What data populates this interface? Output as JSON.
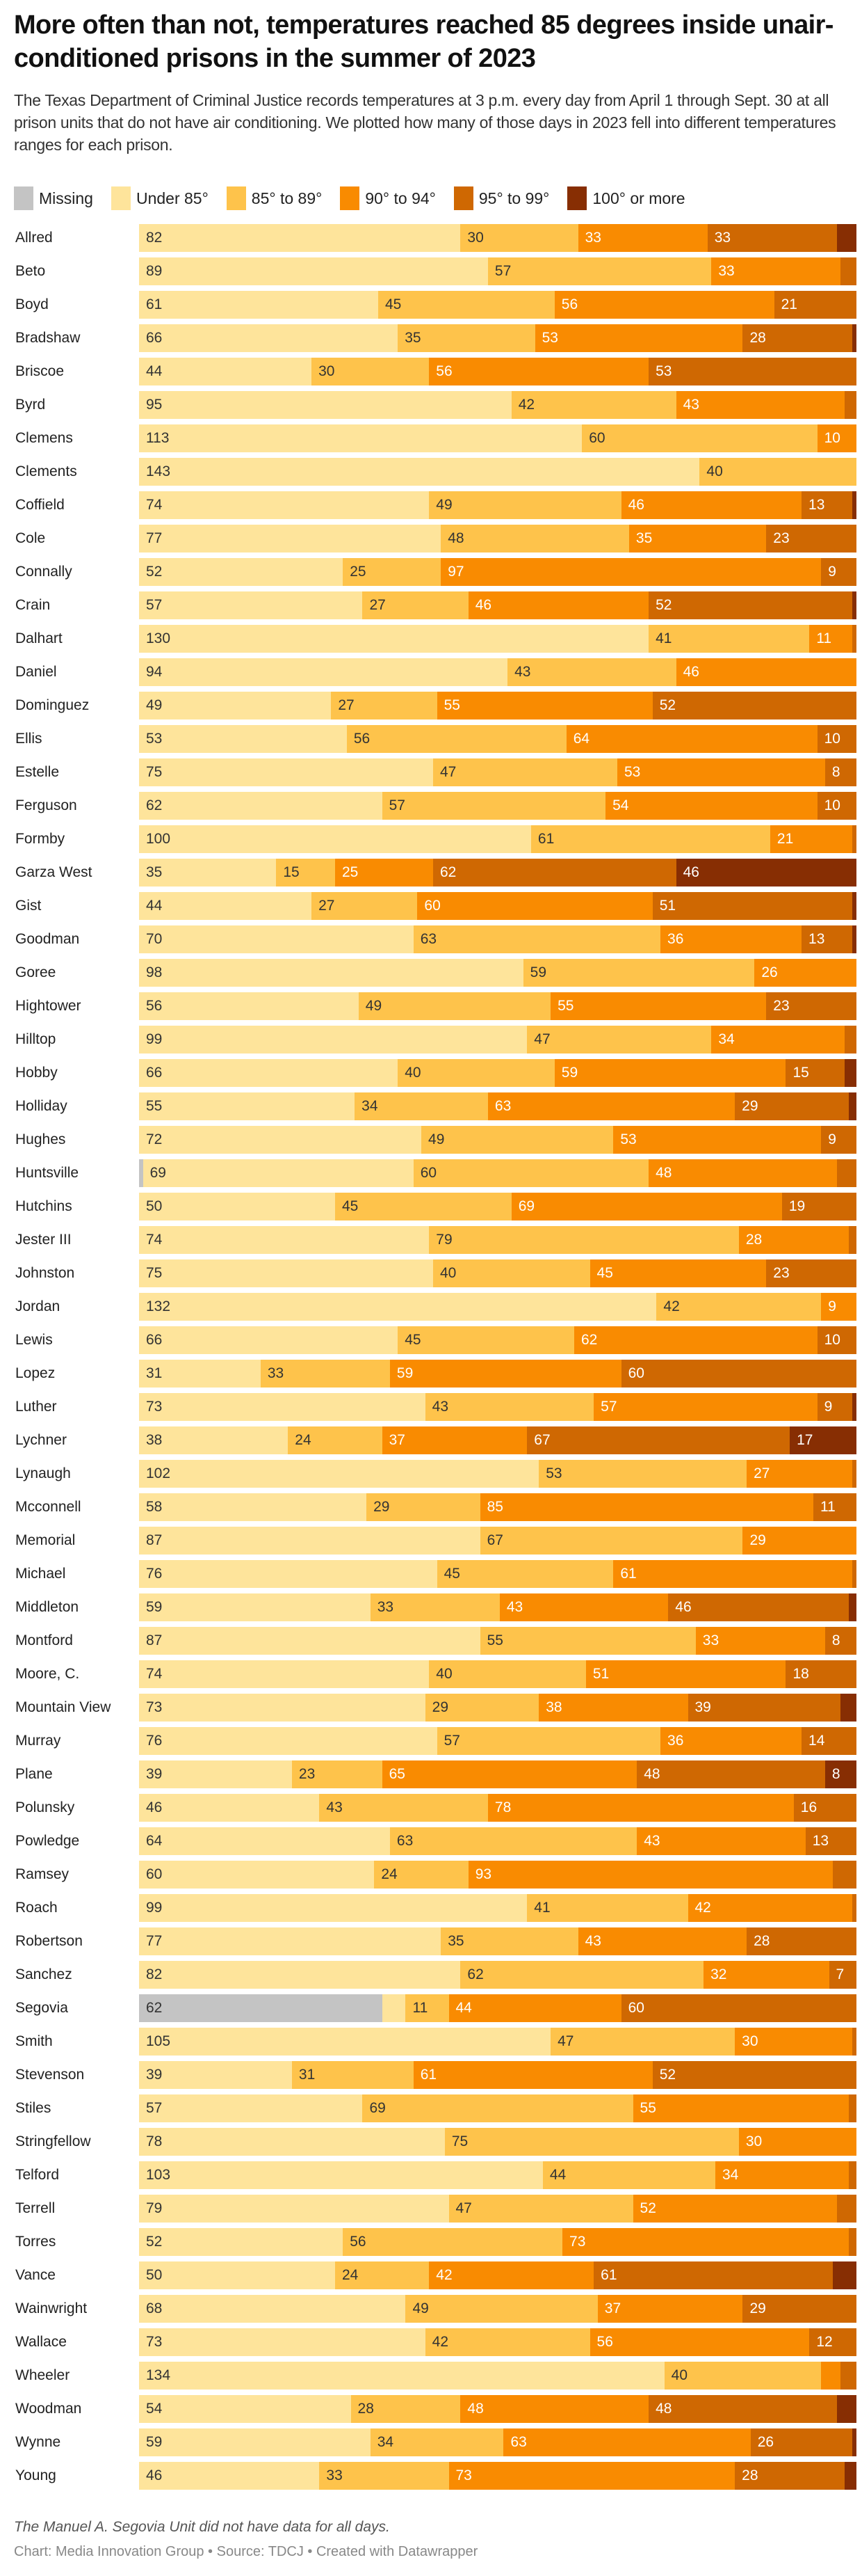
{
  "header": {
    "title": "More often than not, temperatures reached 85 degrees inside unair-conditioned prisons in the summer of 2023",
    "description": "The Texas Department of Criminal Justice records temperatures at 3 p.m. every day from April 1 through Sept. 30 at all prison units that do not have air conditioning. We plotted how many of those days in 2023 fell into different temperatures ranges for each prison."
  },
  "footer": {
    "note": "The Manuel A. Segovia Unit did not have data for all days.",
    "credit": "Chart: Media Innovation Group • Source: TDCJ • Created with Datawrapper"
  },
  "chart_data": {
    "type": "bar",
    "orientation": "horizontal",
    "stacked": true,
    "title": "More often than not, temperatures reached 85 degrees inside unair-conditioned prisons in the summer of 2023",
    "xlabel": "",
    "ylabel": "",
    "xlim": [
      0,
      183
    ],
    "grid": false,
    "legend_position": "top-left",
    "series": [
      {
        "name": "Missing",
        "color": "#c4c4c4",
        "label_color": "#333333"
      },
      {
        "name": "Under 85°",
        "color": "#fee49b",
        "label_color": "#333333"
      },
      {
        "name": "85° to 89°",
        "color": "#fec34b",
        "label_color": "#333333"
      },
      {
        "name": "90° to 94°",
        "color": "#f98b01",
        "label_color": "#ffffff"
      },
      {
        "name": "95° to 99°",
        "color": "#cf6802",
        "label_color": "#ffffff"
      },
      {
        "name": "100° or more",
        "color": "#872e03",
        "label_color": "#ffffff"
      }
    ],
    "categories": [
      "Allred",
      "Beto",
      "Boyd",
      "Bradshaw",
      "Briscoe",
      "Byrd",
      "Clemens",
      "Clements",
      "Coffield",
      "Cole",
      "Connally",
      "Crain",
      "Dalhart",
      "Daniel",
      "Dominguez",
      "Ellis",
      "Estelle",
      "Ferguson",
      "Formby",
      "Garza West",
      "Gist",
      "Goodman",
      "Goree",
      "Hightower",
      "Hilltop",
      "Hobby",
      "Holliday",
      "Hughes",
      "Huntsville",
      "Hutchins",
      "Jester III",
      "Johnston",
      "Jordan",
      "Lewis",
      "Lopez",
      "Luther",
      "Lychner",
      "Lynaugh",
      "Mcconnell",
      "Memorial",
      "Michael",
      "Middleton",
      "Montford",
      "Moore, C.",
      "Mountain View",
      "Murray",
      "Plane",
      "Polunsky",
      "Powledge",
      "Ramsey",
      "Roach",
      "Robertson",
      "Sanchez",
      "Segovia",
      "Smith",
      "Stevenson",
      "Stiles",
      "Stringfellow",
      "Telford",
      "Terrell",
      "Torres",
      "Vance",
      "Wainwright",
      "Wallace",
      "Wheeler",
      "Woodman",
      "Wynne",
      "Young"
    ],
    "values": [
      [
        0,
        82,
        30,
        33,
        33,
        5
      ],
      [
        0,
        89,
        57,
        33,
        4,
        0
      ],
      [
        0,
        61,
        45,
        56,
        21,
        0
      ],
      [
        0,
        66,
        35,
        53,
        28,
        1
      ],
      [
        0,
        44,
        30,
        56,
        53,
        0
      ],
      [
        0,
        95,
        42,
        43,
        3,
        0
      ],
      [
        0,
        113,
        60,
        10,
        0,
        0
      ],
      [
        0,
        143,
        40,
        0,
        0,
        0
      ],
      [
        0,
        74,
        49,
        46,
        13,
        1
      ],
      [
        0,
        77,
        48,
        35,
        23,
        0
      ],
      [
        0,
        52,
        25,
        97,
        9,
        0
      ],
      [
        0,
        57,
        27,
        46,
        52,
        1
      ],
      [
        0,
        130,
        41,
        11,
        1,
        0
      ],
      [
        0,
        94,
        43,
        46,
        0,
        0
      ],
      [
        0,
        49,
        27,
        55,
        52,
        0
      ],
      [
        0,
        53,
        56,
        64,
        10,
        0
      ],
      [
        0,
        75,
        47,
        53,
        8,
        0
      ],
      [
        0,
        62,
        57,
        54,
        10,
        0
      ],
      [
        0,
        100,
        61,
        21,
        1,
        0
      ],
      [
        0,
        35,
        15,
        25,
        62,
        46
      ],
      [
        0,
        44,
        27,
        60,
        51,
        1
      ],
      [
        0,
        70,
        63,
        36,
        13,
        1
      ],
      [
        0,
        98,
        59,
        26,
        0,
        0
      ],
      [
        0,
        56,
        49,
        55,
        23,
        0
      ],
      [
        0,
        99,
        47,
        34,
        3,
        0
      ],
      [
        0,
        66,
        40,
        59,
        15,
        3
      ],
      [
        0,
        55,
        34,
        63,
        29,
        2
      ],
      [
        0,
        72,
        49,
        53,
        9,
        0
      ],
      [
        1,
        69,
        60,
        48,
        5,
        0
      ],
      [
        0,
        50,
        45,
        69,
        19,
        0
      ],
      [
        0,
        74,
        79,
        28,
        2,
        0
      ],
      [
        0,
        75,
        40,
        45,
        23,
        0
      ],
      [
        0,
        132,
        42,
        9,
        0,
        0
      ],
      [
        0,
        66,
        45,
        62,
        10,
        0
      ],
      [
        0,
        31,
        33,
        59,
        60,
        0
      ],
      [
        0,
        73,
        43,
        57,
        9,
        1
      ],
      [
        0,
        38,
        24,
        37,
        67,
        17
      ],
      [
        0,
        102,
        53,
        27,
        1,
        0
      ],
      [
        0,
        58,
        29,
        85,
        11,
        0
      ],
      [
        0,
        87,
        67,
        29,
        0,
        0
      ],
      [
        0,
        76,
        45,
        61,
        1,
        0
      ],
      [
        0,
        59,
        33,
        43,
        46,
        2
      ],
      [
        0,
        87,
        55,
        33,
        8,
        0
      ],
      [
        0,
        74,
        40,
        51,
        18,
        0
      ],
      [
        0,
        73,
        29,
        38,
        39,
        4
      ],
      [
        0,
        76,
        57,
        36,
        14,
        0
      ],
      [
        0,
        39,
        23,
        65,
        48,
        8
      ],
      [
        0,
        46,
        43,
        78,
        16,
        0
      ],
      [
        0,
        64,
        63,
        43,
        13,
        0
      ],
      [
        0,
        60,
        24,
        93,
        6,
        0
      ],
      [
        0,
        99,
        41,
        42,
        1,
        0
      ],
      [
        0,
        77,
        35,
        43,
        28,
        0
      ],
      [
        0,
        82,
        62,
        32,
        7,
        0
      ],
      [
        62,
        6,
        11,
        44,
        60,
        0
      ],
      [
        0,
        105,
        47,
        30,
        1,
        0
      ],
      [
        0,
        39,
        31,
        61,
        52,
        0
      ],
      [
        0,
        57,
        69,
        55,
        2,
        0
      ],
      [
        0,
        78,
        75,
        30,
        0,
        0
      ],
      [
        0,
        103,
        44,
        34,
        2,
        0
      ],
      [
        0,
        79,
        47,
        52,
        5,
        0
      ],
      [
        0,
        52,
        56,
        73,
        2,
        0
      ],
      [
        0,
        50,
        24,
        42,
        61,
        6
      ],
      [
        0,
        68,
        49,
        37,
        29,
        0
      ],
      [
        0,
        73,
        42,
        56,
        12,
        0
      ],
      [
        0,
        134,
        40,
        5,
        4,
        0
      ],
      [
        0,
        54,
        28,
        48,
        48,
        5
      ],
      [
        0,
        59,
        34,
        63,
        26,
        1
      ],
      [
        0,
        46,
        33,
        73,
        28,
        3
      ]
    ],
    "label_min_value": 7,
    "annotations": [
      "The Manuel A. Segovia Unit did not have data for all days."
    ]
  }
}
